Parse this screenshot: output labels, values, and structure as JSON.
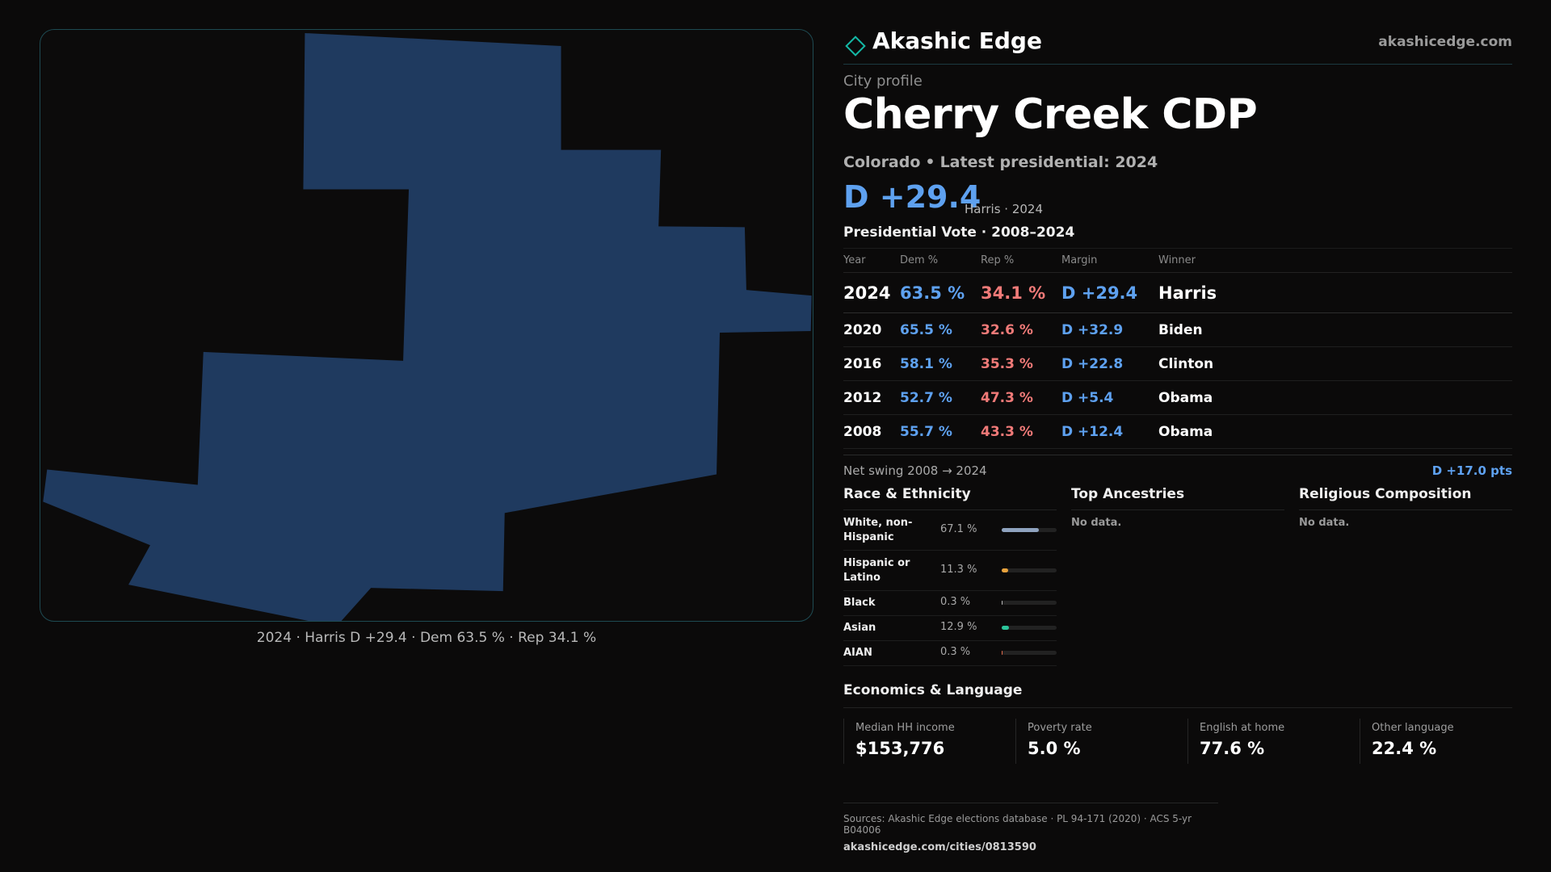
{
  "brand": {
    "name": "Akashic Edge",
    "url": "akashicedge.com",
    "accent": "#14b8a6"
  },
  "profile": {
    "kicker": "City profile",
    "city": "Cherry Creek CDP",
    "state": "Colorado",
    "latest_label": "Latest presidential: 2024",
    "headline_margin": "D +29.4",
    "headline_note": "Harris · 2024"
  },
  "map": {
    "fill": "#1f3a5f",
    "caption": "2024 · Harris D +29.4 · Dem 63.5 % · Rep 34.1 %"
  },
  "vote_table": {
    "title": "Presidential Vote · 2008–2024",
    "headers": [
      "Year",
      "Dem %",
      "Rep %",
      "Margin",
      "Winner"
    ],
    "rows": [
      {
        "year": "2024",
        "dem": "63.5 %",
        "rep": "34.1 %",
        "margin": "D +29.4",
        "winner": "Harris"
      },
      {
        "year": "2020",
        "dem": "65.5 %",
        "rep": "32.6 %",
        "margin": "D +32.9",
        "winner": "Biden"
      },
      {
        "year": "2016",
        "dem": "58.1 %",
        "rep": "35.3 %",
        "margin": "D +22.8",
        "winner": "Clinton"
      },
      {
        "year": "2012",
        "dem": "52.7 %",
        "rep": "47.3 %",
        "margin": "D +5.4",
        "winner": "Obama"
      },
      {
        "year": "2008",
        "dem": "55.7 %",
        "rep": "43.3 %",
        "margin": "D +12.4",
        "winner": "Obama"
      }
    ],
    "colors": {
      "dem": "#5ea1f0",
      "rep": "#f07a78"
    }
  },
  "swing": {
    "label": "Net swing 2008 → 2024",
    "value": "D +17.0 pts"
  },
  "race": {
    "title": "Race & Ethnicity",
    "rows": [
      {
        "label": "White, non-Hispanic",
        "pct": "67.1 %",
        "share": 0.671,
        "color": "#8fa3bf"
      },
      {
        "label": "Hispanic or Latino",
        "pct": "11.3 %",
        "share": 0.113,
        "color": "#e8a33d"
      },
      {
        "label": "Black",
        "pct": "0.3 %",
        "share": 0.003,
        "color": "#b9b9b9"
      },
      {
        "label": "Asian",
        "pct": "12.9 %",
        "share": 0.129,
        "color": "#2bc49a"
      },
      {
        "label": "AIAN",
        "pct": "0.3 %",
        "share": 0.003,
        "color": "#e06b4c"
      }
    ]
  },
  "ancestries": {
    "title": "Top Ancestries",
    "empty": "No data."
  },
  "religion": {
    "title": "Religious Composition",
    "empty": "No data."
  },
  "economics": {
    "title": "Economics & Language",
    "cards": [
      {
        "label": "Median HH income",
        "value": "$153,776"
      },
      {
        "label": "Poverty rate",
        "value": "5.0 %"
      },
      {
        "label": "English at home",
        "value": "77.6 %"
      },
      {
        "label": "Other language",
        "value": "22.4 %"
      }
    ]
  },
  "footer": {
    "sources": "Sources: Akashic Edge elections database · PL 94-171 (2020) · ACS 5-yr B04006",
    "url": "akashicedge.com/cities/0813590"
  }
}
